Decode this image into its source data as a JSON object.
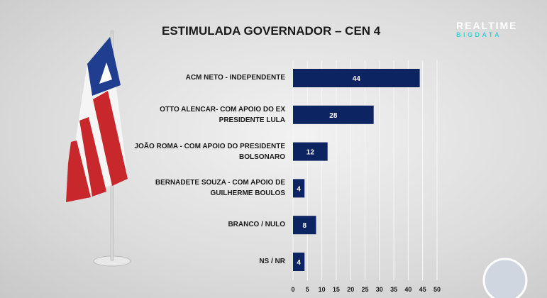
{
  "chart_data": {
    "type": "bar",
    "orientation": "horizontal",
    "title": "ESTIMULADA GOVERNADOR – CEN 4",
    "categories": [
      "ACM NETO - INDEPENDENTE",
      "OTTO ALENCAR- COM APOIO DO EX PRESIDENTE LULA",
      "JOÃO ROMA - COM APOIO DO PRESIDENTE BOLSONARO",
      "BERNADETE SOUZA - COM APOIO DE GUILHERME BOULOS",
      "BRANCO / NULO",
      "NS / NR"
    ],
    "values": [
      44,
      28,
      12,
      4,
      8,
      4
    ],
    "xlim": [
      0,
      50
    ],
    "xticks": [
      0,
      5,
      10,
      15,
      20,
      25,
      30,
      35,
      40,
      45,
      50
    ],
    "grid": true,
    "bar_color": "#0d2462"
  },
  "branding": {
    "line1": "REALTIME",
    "line2": "BIGDATA"
  }
}
